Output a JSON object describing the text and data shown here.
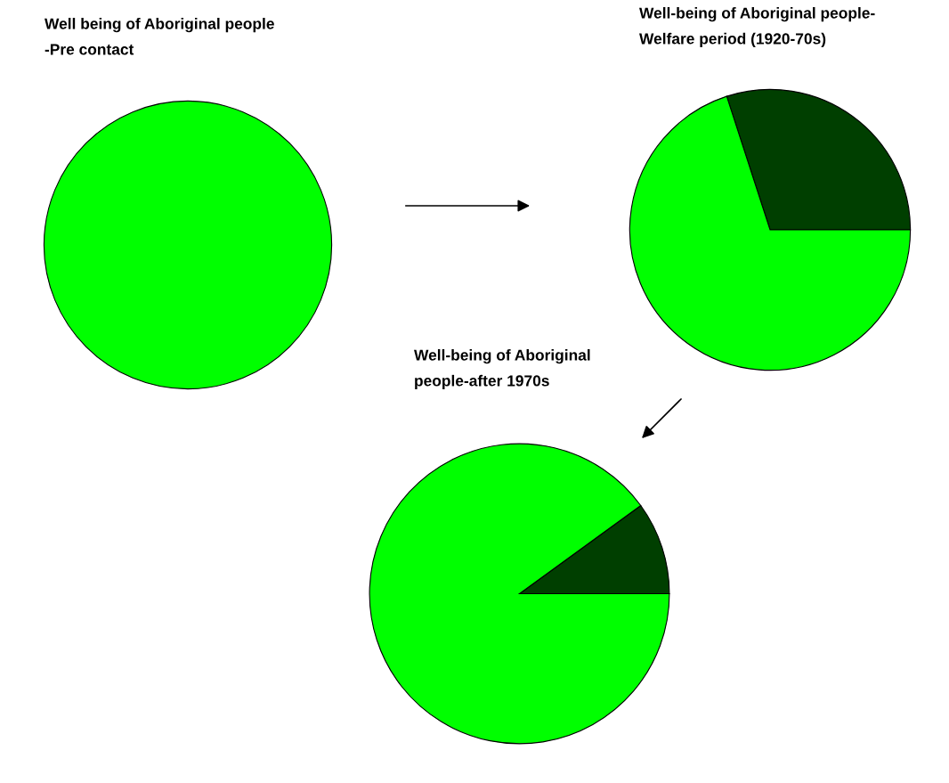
{
  "chart_data": [
    {
      "type": "pie",
      "title": "Well being of Aboriginal people\n-Pre contact",
      "categories": [
        null
      ],
      "values": [
        100
      ],
      "colors": [
        "#00ff00"
      ]
    },
    {
      "type": "pie",
      "title": "Well-being of Aboriginal people-\nWelfare period (1920-70s)",
      "categories": [
        null,
        null
      ],
      "values": [
        30,
        70
      ],
      "colors": [
        "#003f00",
        "#00ff00"
      ]
    },
    {
      "type": "pie",
      "title": "Well-being of Aboriginal\npeople-after 1970s",
      "categories": [
        null,
        null
      ],
      "values": [
        10,
        90
      ],
      "colors": [
        "#003f00",
        "#00ff00"
      ]
    }
  ]
}
